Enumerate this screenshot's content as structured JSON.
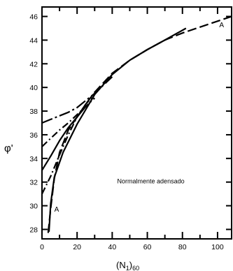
{
  "chart_data": {
    "type": "line",
    "xlabel": "(N",
    "xlabel_sub1": "1",
    "xlabel_mid": ")",
    "xlabel_sub2": "60",
    "ylabel": "φ'",
    "xlim": [
      0,
      108
    ],
    "ylim": [
      27.2,
      46.8
    ],
    "x_ticks": [
      0,
      20,
      40,
      60,
      80,
      100
    ],
    "y_ticks": [
      28,
      30,
      32,
      34,
      36,
      38,
      40,
      42,
      44,
      46
    ],
    "grid": false,
    "annotations": [
      {
        "text": "Normalmente adensado",
        "x": 62,
        "y": 31.9
      },
      {
        "text": "A",
        "x": 101,
        "y": 45.1
      },
      {
        "text": "A",
        "x": 7,
        "y": 29.5
      }
    ],
    "series": [
      {
        "style": "dashed",
        "points": [
          [
            3.5,
            27.7
          ],
          [
            5,
            29.8
          ],
          [
            7,
            32.3
          ],
          [
            10,
            34.5
          ],
          [
            15,
            36.4
          ],
          [
            20,
            37.5
          ],
          [
            25,
            38.6
          ],
          [
            30,
            39.6
          ],
          [
            40,
            41.2
          ],
          [
            50,
            42.3
          ],
          [
            60,
            43.2
          ],
          [
            70,
            44.0
          ],
          [
            80,
            44.6
          ],
          [
            90,
            45.1
          ],
          [
            100,
            45.6
          ],
          [
            108,
            46.0
          ]
        ]
      },
      {
        "style": "solid",
        "points": [
          [
            4,
            27.8
          ],
          [
            5,
            30.2
          ],
          [
            7,
            32.4
          ],
          [
            12,
            34.5
          ],
          [
            20,
            36.9
          ],
          [
            30,
            39.4
          ],
          [
            40,
            41.1
          ],
          [
            50,
            42.3
          ],
          [
            60,
            43.2
          ],
          [
            70,
            44.0
          ],
          [
            82,
            45.0
          ]
        ]
      },
      {
        "style": "solid",
        "points": [
          [
            0,
            33.0
          ],
          [
            5,
            34.2
          ],
          [
            10,
            35.5
          ],
          [
            15,
            36.6
          ],
          [
            20,
            37.5
          ],
          [
            25,
            38.4
          ]
        ]
      },
      {
        "style": "dash-dot",
        "points": [
          [
            0,
            31.0
          ],
          [
            5,
            32.5
          ],
          [
            10,
            34.3
          ],
          [
            15,
            36.0
          ],
          [
            20,
            37.5
          ],
          [
            25,
            38.6
          ],
          [
            30,
            39.4
          ]
        ]
      },
      {
        "style": "dash-dot",
        "points": [
          [
            0,
            35.0
          ],
          [
            5,
            35.7
          ],
          [
            10,
            36.4
          ],
          [
            15,
            37.0
          ],
          [
            20,
            37.7
          ],
          [
            25,
            38.4
          ],
          [
            30,
            39.1
          ]
        ]
      },
      {
        "style": "long-dash-dot",
        "points": [
          [
            0,
            37.0
          ],
          [
            5,
            37.3
          ],
          [
            10,
            37.6
          ],
          [
            15,
            37.9
          ],
          [
            20,
            38.3
          ],
          [
            25,
            38.9
          ],
          [
            30,
            39.5
          ],
          [
            40,
            40.9
          ]
        ]
      }
    ]
  }
}
